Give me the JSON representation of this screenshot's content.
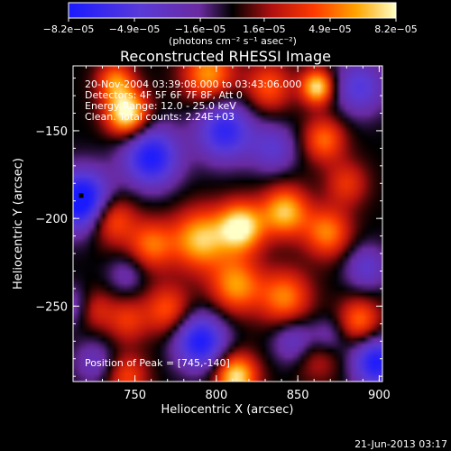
{
  "chart_data": {
    "type": "heatmap",
    "title": "Reconstructed RHESSI Image",
    "xlabel": "Heliocentric X (arcsec)",
    "ylabel": "Heliocentric Y (arcsec)",
    "xlim": [
      712,
      902
    ],
    "ylim": [
      -293,
      -113
    ],
    "x_ticks": [
      {
        "value": 750,
        "label": "750"
      },
      {
        "value": 800,
        "label": "800"
      },
      {
        "value": 850,
        "label": "850"
      },
      {
        "value": 900,
        "label": "900"
      }
    ],
    "y_ticks": [
      {
        "value": -150,
        "label": "−150"
      },
      {
        "value": -200,
        "label": "−200"
      },
      {
        "value": -250,
        "label": "−250"
      }
    ],
    "colorbar": {
      "vmin": -8.2e-05,
      "vmax": 8.2e-05,
      "tick_values": [
        -8.2e-05,
        -4.9e-05,
        -1.6e-05,
        1.6e-05,
        4.9e-05,
        8.2e-05
      ],
      "tick_labels": [
        "−8.2e−05",
        "−4.9e−05",
        "−1.6e−05",
        "1.6e−05",
        "4.9e−05",
        "8.2e−05"
      ],
      "unit_label": "(photons cm⁻² s⁻¹ asec⁻²)"
    },
    "annotations": [
      "20-Nov-2004 03:39:08.000 to 03:43:06.000",
      "Detectors: 4F 5F 6F 7F 8F, Att 0",
      "Energy Range: 12.0 - 25.0 keV",
      "Clean. Total counts: 2.24E+03"
    ],
    "peak_label": "Position of Peak = [745,-140]",
    "peak": {
      "x": 745,
      "y": -140
    },
    "marker": {
      "x": 717,
      "y": -187
    },
    "blobs": [
      {
        "x": 745,
        "y": -140,
        "a": 9e-05,
        "s": 9
      },
      {
        "x": 738,
        "y": -122,
        "a": 5.5e-05,
        "s": 8
      },
      {
        "x": 795,
        "y": -118,
        "a": 6e-05,
        "s": 11
      },
      {
        "x": 832,
        "y": -125,
        "a": 4.5e-05,
        "s": 10
      },
      {
        "x": 862,
        "y": -125,
        "a": 8e-05,
        "s": 7
      },
      {
        "x": 866,
        "y": -155,
        "a": 5e-05,
        "s": 9
      },
      {
        "x": 735,
        "y": -200,
        "a": 5.5e-05,
        "s": 10
      },
      {
        "x": 760,
        "y": -215,
        "a": 5e-05,
        "s": 10
      },
      {
        "x": 790,
        "y": -212,
        "a": 7e-05,
        "s": 12
      },
      {
        "x": 815,
        "y": -205,
        "a": 8.5e-05,
        "s": 10
      },
      {
        "x": 842,
        "y": -196,
        "a": 7e-05,
        "s": 10
      },
      {
        "x": 868,
        "y": -208,
        "a": 5.5e-05,
        "s": 10
      },
      {
        "x": 812,
        "y": -238,
        "a": 6e-05,
        "s": 11
      },
      {
        "x": 842,
        "y": -245,
        "a": 5.5e-05,
        "s": 11
      },
      {
        "x": 770,
        "y": -252,
        "a": 4.5e-05,
        "s": 10
      },
      {
        "x": 745,
        "y": -258,
        "a": 3.5e-05,
        "s": 9
      },
      {
        "x": 888,
        "y": -258,
        "a": 5e-05,
        "s": 9
      },
      {
        "x": 862,
        "y": -278,
        "a": 3e-05,
        "s": 10
      },
      {
        "x": 812,
        "y": -290,
        "a": 8e-05,
        "s": 9
      },
      {
        "x": 745,
        "y": -290,
        "a": 4e-05,
        "s": 9
      },
      {
        "x": 725,
        "y": -252,
        "a": 3e-05,
        "s": 8
      },
      {
        "x": 880,
        "y": -180,
        "a": 3.5e-05,
        "s": 9
      },
      {
        "x": 718,
        "y": -190,
        "a": -0.0001,
        "s": 12
      },
      {
        "x": 760,
        "y": -165,
        "a": -8e-05,
        "s": 12
      },
      {
        "x": 805,
        "y": -150,
        "a": -7e-05,
        "s": 12
      },
      {
        "x": 888,
        "y": -125,
        "a": -5e-05,
        "s": 11
      },
      {
        "x": 835,
        "y": -160,
        "a": -4e-05,
        "s": 10
      },
      {
        "x": 712,
        "y": -250,
        "a": -3e-05,
        "s": 8
      },
      {
        "x": 790,
        "y": -270,
        "a": -8e-05,
        "s": 11
      },
      {
        "x": 725,
        "y": -282,
        "a": -3e-05,
        "s": 9
      },
      {
        "x": 898,
        "y": -282,
        "a": -8e-05,
        "s": 10
      },
      {
        "x": 848,
        "y": -270,
        "a": -4e-05,
        "s": 9
      },
      {
        "x": 892,
        "y": -228,
        "a": -4e-05,
        "s": 9
      },
      {
        "x": 868,
        "y": -268,
        "a": -3e-05,
        "s": 8
      },
      {
        "x": 745,
        "y": -232,
        "a": -2.5e-05,
        "s": 8
      }
    ]
  },
  "footer": {
    "timestamp": "21-Jun-2013 03:17"
  }
}
